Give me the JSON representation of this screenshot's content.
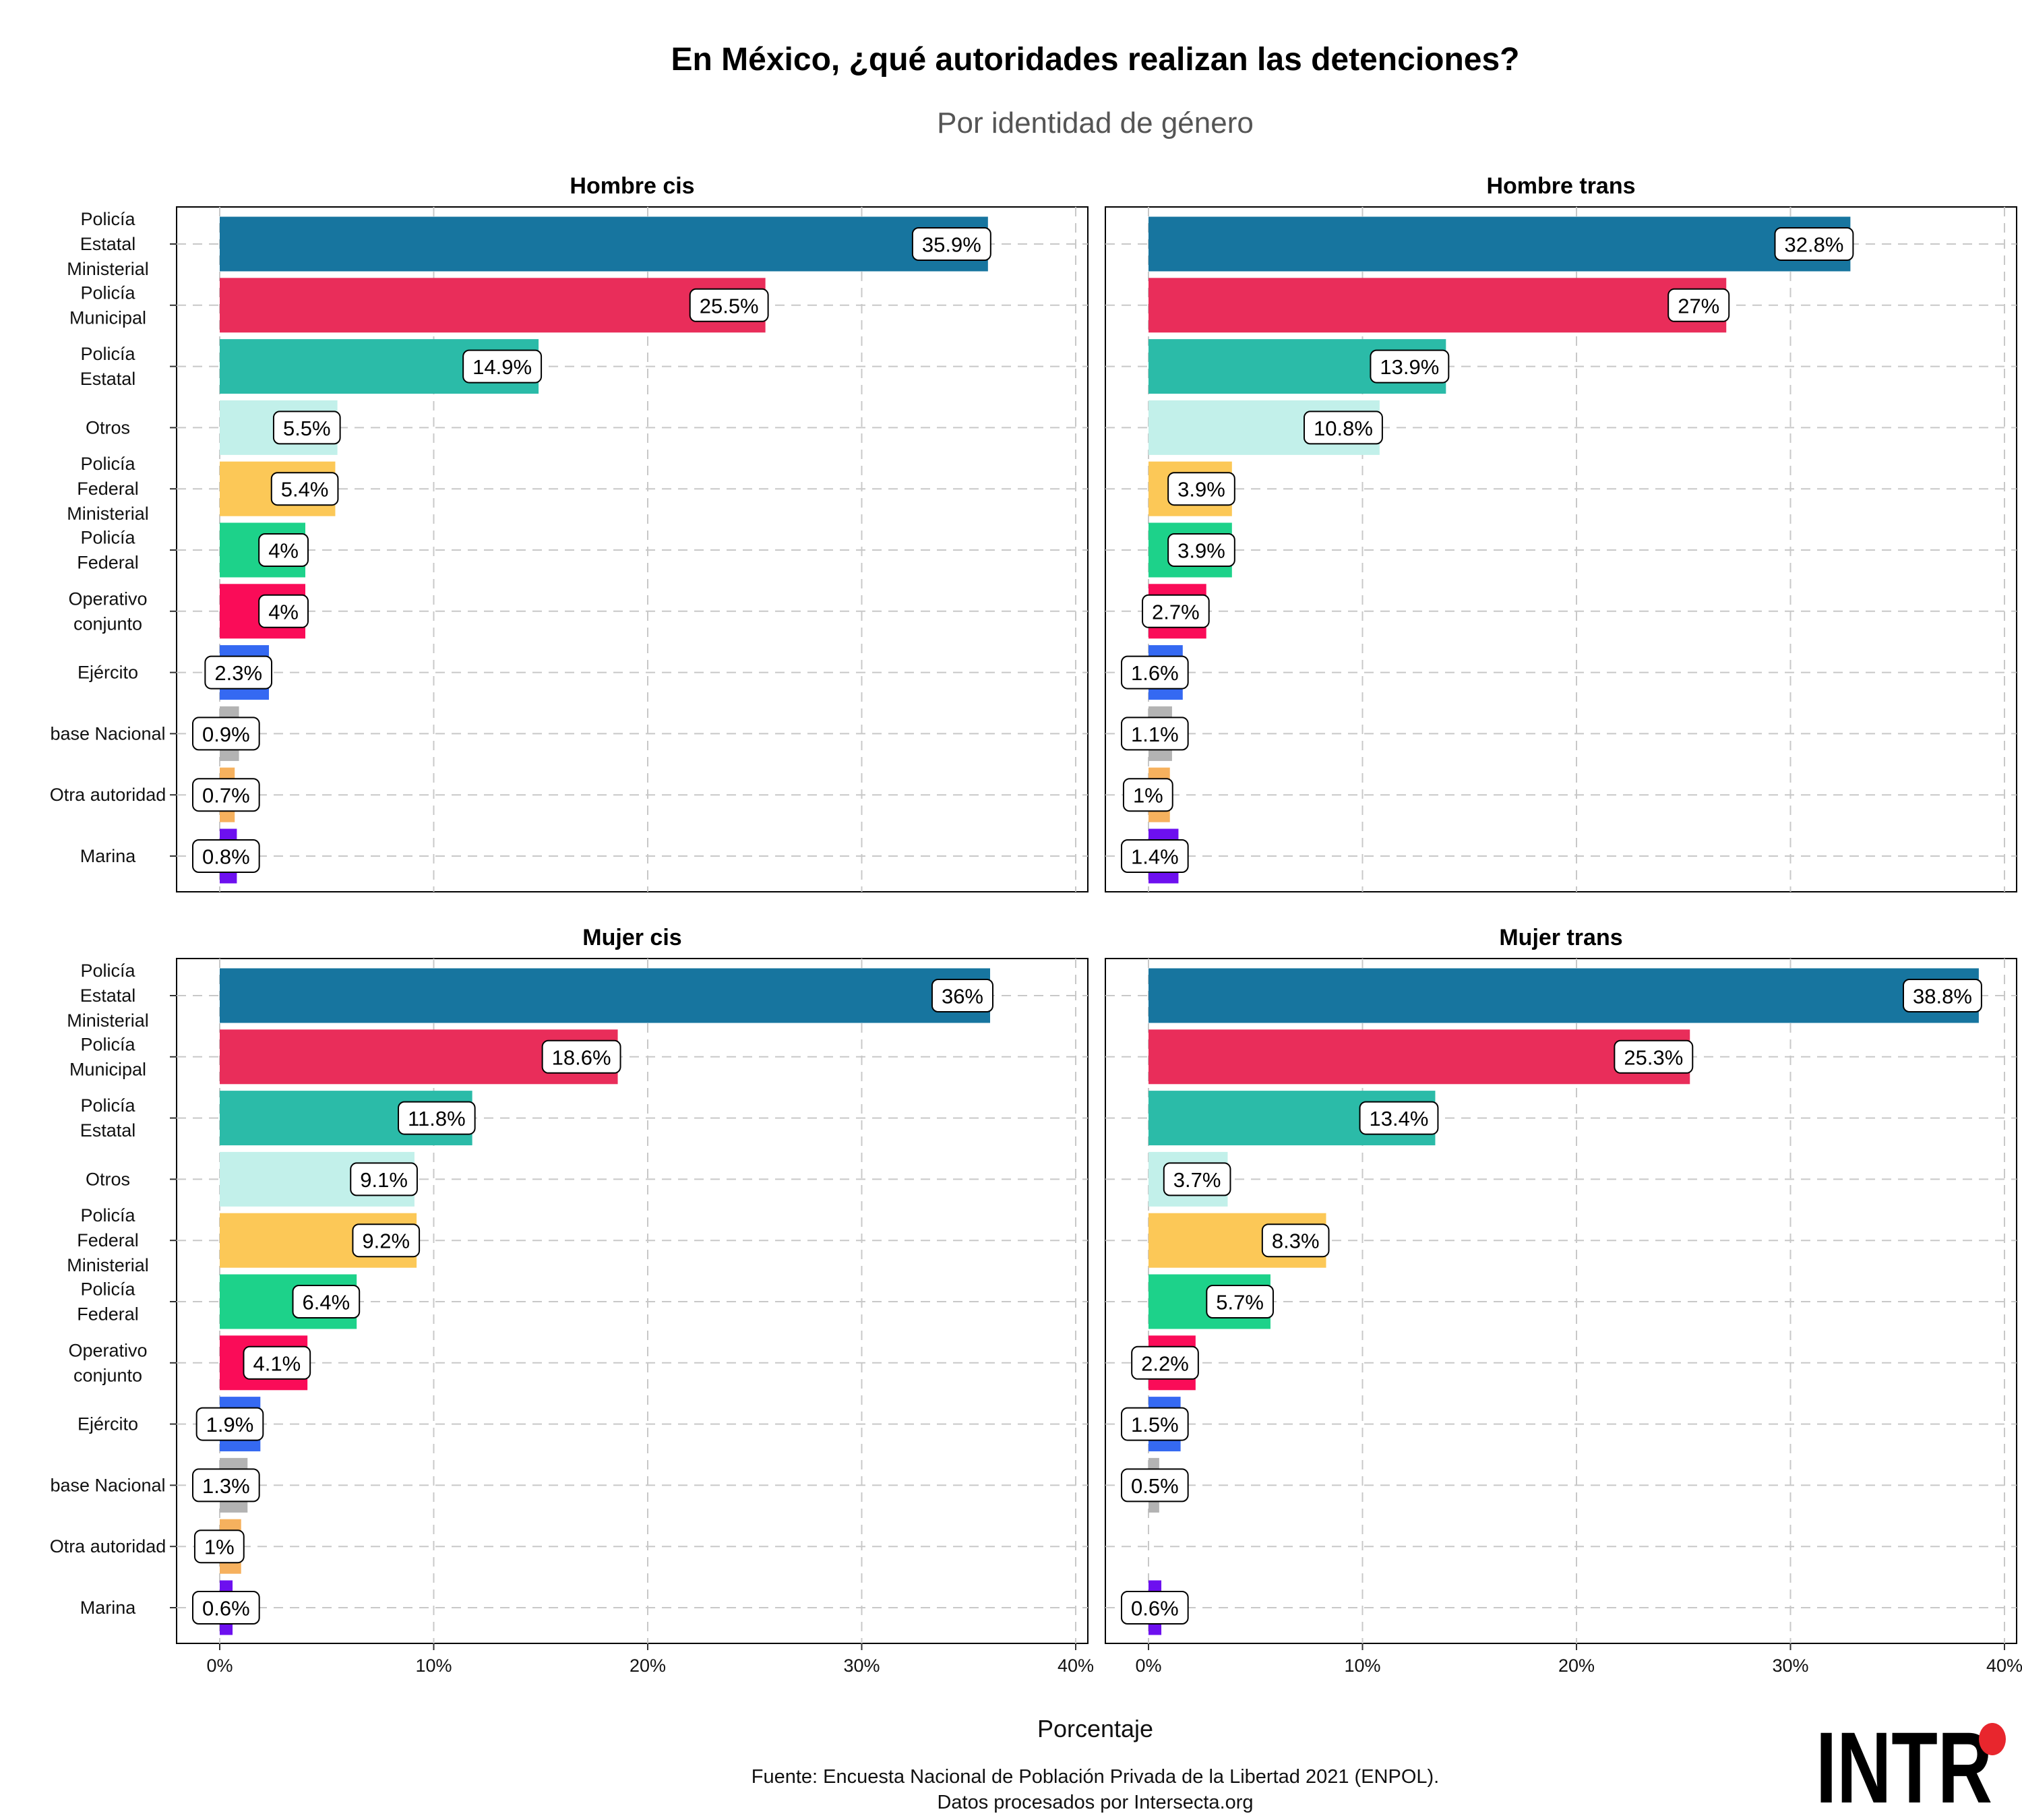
{
  "chart_data": {
    "type": "bar",
    "title": "En México, ¿qué autoridades realizan las detenciones?",
    "subtitle": "Por identidad de género",
    "xlabel": "Porcentaje",
    "caption_lines": [
      "Fuente: Encuesta Nacional de Población Privada de la Libertad 2021 (ENPOL).",
      "Datos procesados por Intersecta.org"
    ],
    "xlim": [
      0,
      40
    ],
    "x_ticks": [
      0,
      10,
      20,
      30,
      40
    ],
    "x_tick_labels": [
      "0%",
      "10%",
      "20%",
      "30%",
      "40%"
    ],
    "grid": true,
    "categories": [
      [
        "Policía",
        "Estatal",
        "Ministerial"
      ],
      [
        "Policía",
        "Municipal"
      ],
      [
        "Policía",
        "Estatal"
      ],
      [
        "Otros"
      ],
      [
        "Policía",
        "Federal",
        "Ministerial"
      ],
      [
        "Policía",
        "Federal"
      ],
      [
        "Operativo",
        "conjunto"
      ],
      [
        "Ejército"
      ],
      [
        "base Nacional"
      ],
      [
        "Otra autoridad"
      ],
      [
        "Marina"
      ]
    ],
    "colors": [
      "#17759f",
      "#e92d5a",
      "#2bbba8",
      "#c2f0ea",
      "#fcc857",
      "#1dd28a",
      "#fa0c58",
      "#3569f2",
      "#b3b3b3",
      "#f6b15e",
      "#6d10ef"
    ],
    "panels": [
      {
        "name": "Hombre cis",
        "values": [
          35.9,
          25.5,
          14.9,
          5.5,
          5.4,
          4.0,
          4.0,
          2.3,
          0.9,
          0.7,
          0.8
        ],
        "labels": [
          "35.9%",
          "25.5%",
          "14.9%",
          "5.5%",
          "5.4%",
          "4%",
          "4%",
          "2.3%",
          "0.9%",
          "0.7%",
          "0.8%"
        ]
      },
      {
        "name": "Hombre trans",
        "values": [
          32.8,
          27.0,
          13.9,
          10.8,
          3.9,
          3.9,
          2.7,
          1.6,
          1.1,
          1.0,
          1.4
        ],
        "labels": [
          "32.8%",
          "27%",
          "13.9%",
          "10.8%",
          "3.9%",
          "3.9%",
          "2.7%",
          "1.6%",
          "1.1%",
          "1%",
          "1.4%"
        ]
      },
      {
        "name": "Mujer cis",
        "values": [
          36.0,
          18.6,
          11.8,
          9.1,
          9.2,
          6.4,
          4.1,
          1.9,
          1.3,
          1.0,
          0.6
        ],
        "labels": [
          "36%",
          "18.6%",
          "11.8%",
          "9.1%",
          "9.2%",
          "6.4%",
          "4.1%",
          "1.9%",
          "1.3%",
          "1%",
          "0.6%"
        ]
      },
      {
        "name": "Mujer trans",
        "values": [
          38.8,
          25.3,
          13.4,
          3.7,
          8.3,
          5.7,
          2.2,
          1.5,
          0.5,
          null,
          0.6
        ],
        "labels": [
          "38.8%",
          "25.3%",
          "13.4%",
          "3.7%",
          "8.3%",
          "5.7%",
          "2.2%",
          "1.5%",
          "0.5%",
          null,
          "0.6%"
        ]
      }
    ]
  },
  "logo": {
    "text": "INTR",
    "accent_color": "#e8262d"
  }
}
